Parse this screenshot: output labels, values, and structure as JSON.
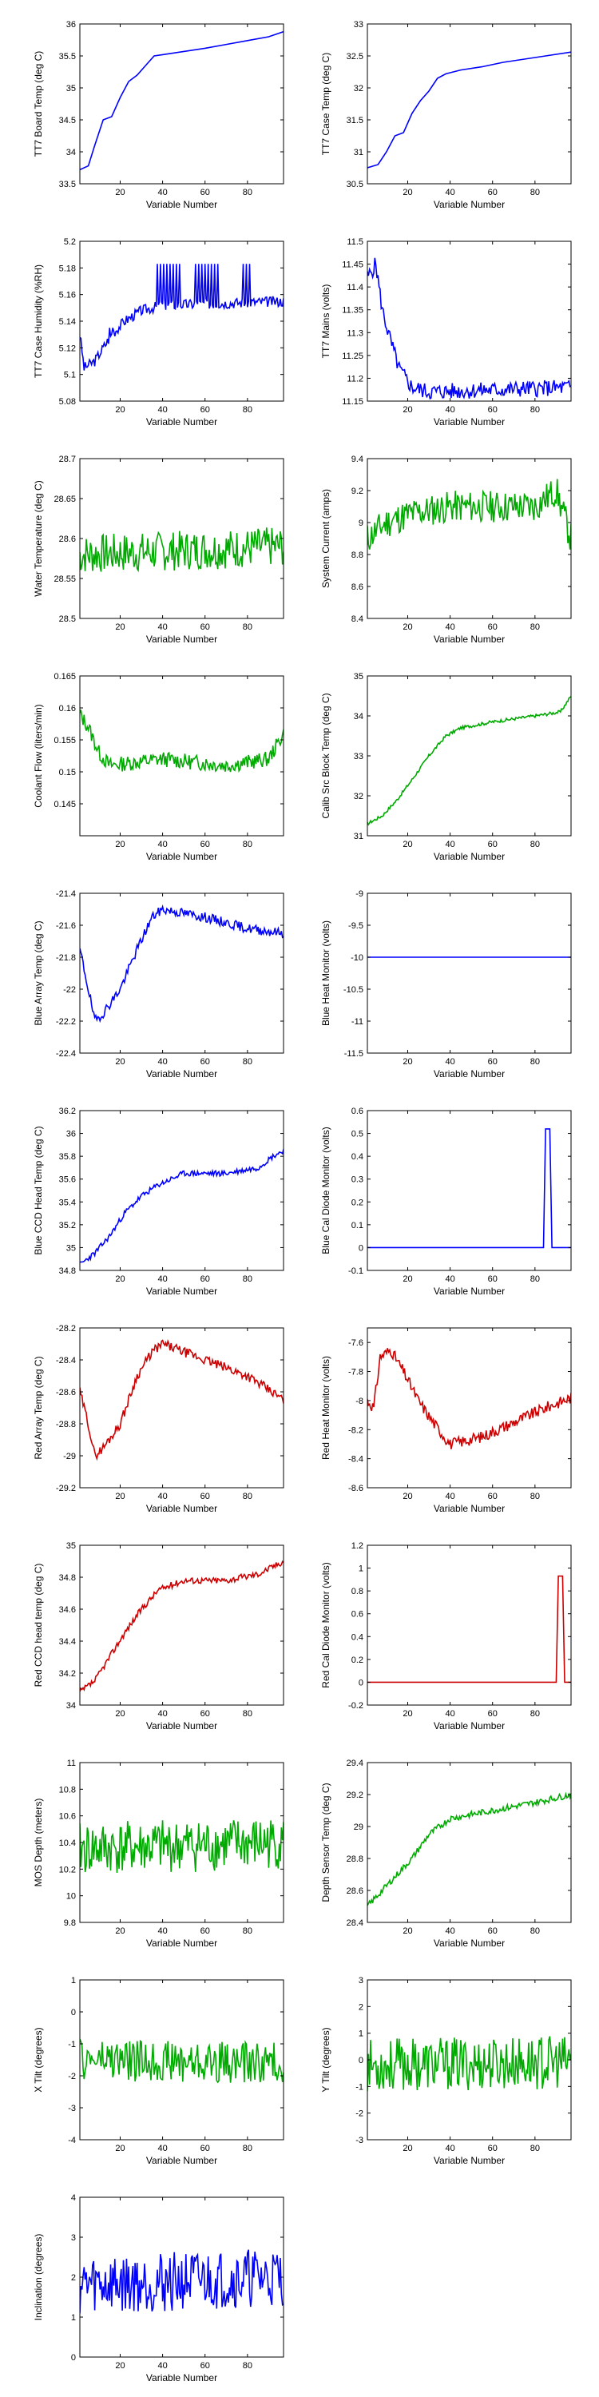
{
  "colors": {
    "blue": "#0000ff",
    "green": "#00aa00",
    "red": "#cc0000"
  },
  "chart_data": [
    {
      "type": "line",
      "xlabel": "Variable Number",
      "ylabel": "TT7 Board Temp (deg C)",
      "color": "blue",
      "xlim": [
        1,
        97
      ],
      "ylim": [
        33.5,
        36
      ],
      "xticks": [
        20,
        40,
        60,
        80
      ],
      "yticks": [
        33.5,
        34,
        34.5,
        35,
        35.5,
        36
      ],
      "kind": "smooth",
      "points": [
        [
          1,
          33.72
        ],
        [
          5,
          33.78
        ],
        [
          8,
          34.1
        ],
        [
          10,
          34.3
        ],
        [
          12,
          34.5
        ],
        [
          16,
          34.55
        ],
        [
          20,
          34.85
        ],
        [
          24,
          35.1
        ],
        [
          28,
          35.2
        ],
        [
          32,
          35.35
        ],
        [
          36,
          35.5
        ],
        [
          40,
          35.52
        ],
        [
          50,
          35.57
        ],
        [
          60,
          35.62
        ],
        [
          70,
          35.68
        ],
        [
          80,
          35.74
        ],
        [
          90,
          35.8
        ],
        [
          97,
          35.88
        ]
      ]
    },
    {
      "type": "line",
      "xlabel": "Variable Number",
      "ylabel": "TT7 Case Temp (deg C)",
      "color": "blue",
      "xlim": [
        1,
        97
      ],
      "ylim": [
        30.5,
        33
      ],
      "xticks": [
        20,
        40,
        60,
        80
      ],
      "yticks": [
        30.5,
        31,
        31.5,
        32,
        32.5,
        33
      ],
      "kind": "smooth",
      "points": [
        [
          1,
          30.75
        ],
        [
          6,
          30.8
        ],
        [
          10,
          31.0
        ],
        [
          14,
          31.25
        ],
        [
          18,
          31.3
        ],
        [
          22,
          31.6
        ],
        [
          26,
          31.8
        ],
        [
          30,
          31.95
        ],
        [
          34,
          32.15
        ],
        [
          38,
          32.22
        ],
        [
          45,
          32.28
        ],
        [
          55,
          32.33
        ],
        [
          65,
          32.4
        ],
        [
          75,
          32.45
        ],
        [
          85,
          32.5
        ],
        [
          97,
          32.56
        ]
      ]
    },
    {
      "type": "line",
      "xlabel": "Variable Number",
      "ylabel": "TT7 Case Humidity (%RH)",
      "color": "blue",
      "xlim": [
        1,
        97
      ],
      "ylim": [
        5.08,
        5.2
      ],
      "xticks": [
        20,
        40,
        60,
        80
      ],
      "yticks": [
        5.08,
        5.1,
        5.12,
        5.14,
        5.16,
        5.18,
        5.2
      ],
      "kind": "noise",
      "base": [
        [
          1,
          5.13
        ],
        [
          3,
          5.105
        ],
        [
          8,
          5.11
        ],
        [
          12,
          5.12
        ],
        [
          16,
          5.13
        ],
        [
          22,
          5.14
        ],
        [
          30,
          5.148
        ],
        [
          40,
          5.152
        ],
        [
          97,
          5.155
        ]
      ],
      "noise": 0.004,
      "seed": 3,
      "spikes": [
        [
          37,
          48,
          5.183
        ],
        [
          55,
          66,
          5.183
        ],
        [
          77,
          82,
          5.183
        ],
        [
          14,
          17,
          5.135
        ]
      ]
    },
    {
      "type": "line",
      "xlabel": "Variable Number",
      "ylabel": "TT7 Mains  (volts)",
      "color": "blue",
      "xlim": [
        1,
        97
      ],
      "ylim": [
        11.15,
        11.5
      ],
      "xticks": [
        20,
        40,
        60,
        80
      ],
      "yticks": [
        11.15,
        11.2,
        11.25,
        11.3,
        11.35,
        11.4,
        11.45,
        11.5
      ],
      "kind": "noise",
      "base": [
        [
          1,
          11.42
        ],
        [
          5,
          11.45
        ],
        [
          8,
          11.35
        ],
        [
          12,
          11.28
        ],
        [
          16,
          11.22
        ],
        [
          22,
          11.18
        ],
        [
          30,
          11.17
        ],
        [
          97,
          11.18
        ]
      ],
      "noise": 0.018,
      "seed": 5
    },
    {
      "type": "line",
      "xlabel": "Variable Number",
      "ylabel": "Water Temperature (deg C)",
      "color": "green",
      "xlim": [
        1,
        97
      ],
      "ylim": [
        28.5,
        28.7
      ],
      "xticks": [
        20,
        40,
        60,
        80
      ],
      "yticks": [
        28.5,
        28.55,
        28.6,
        28.65,
        28.7
      ],
      "kind": "noise",
      "base": [
        [
          1,
          28.58
        ],
        [
          97,
          28.59
        ]
      ],
      "noise": 0.025,
      "seed": 7
    },
    {
      "type": "line",
      "xlabel": "Variable Number",
      "ylabel": "System Current (amps)",
      "color": "green",
      "xlim": [
        1,
        97
      ],
      "ylim": [
        8.4,
        9.4
      ],
      "xticks": [
        20,
        40,
        60,
        80
      ],
      "yticks": [
        8.4,
        8.6,
        8.8,
        9,
        9.2,
        9.4
      ],
      "kind": "noise",
      "base": [
        [
          1,
          8.9
        ],
        [
          10,
          9.0
        ],
        [
          20,
          9.05
        ],
        [
          40,
          9.1
        ],
        [
          80,
          9.1
        ],
        [
          90,
          9.2
        ],
        [
          97,
          8.9
        ]
      ],
      "noise": 0.1,
      "seed": 11
    },
    {
      "type": "line",
      "xlabel": "Variable Number",
      "ylabel": "Coolant Flow (liters/min)",
      "color": "green",
      "xlim": [
        1,
        97
      ],
      "ylim": [
        0.14,
        0.165
      ],
      "xticks": [
        20,
        40,
        60,
        80
      ],
      "yticks": [
        0.145,
        0.15,
        0.155,
        0.16,
        0.165
      ],
      "kind": "noise",
      "base": [
        [
          1,
          0.159
        ],
        [
          5,
          0.157
        ],
        [
          10,
          0.153
        ],
        [
          15,
          0.151
        ],
        [
          40,
          0.152
        ],
        [
          70,
          0.151
        ],
        [
          90,
          0.152
        ],
        [
          97,
          0.156
        ]
      ],
      "noise": 0.0012,
      "seed": 13
    },
    {
      "type": "line",
      "xlabel": "Variable Number",
      "ylabel": "Calib Src Block Temp (deg C)",
      "color": "green",
      "xlim": [
        1,
        97
      ],
      "ylim": [
        31,
        35
      ],
      "xticks": [
        20,
        40,
        60,
        80
      ],
      "yticks": [
        31,
        32,
        33,
        34,
        35
      ],
      "kind": "noise",
      "base": [
        [
          1,
          31.3
        ],
        [
          8,
          31.5
        ],
        [
          15,
          31.9
        ],
        [
          22,
          32.4
        ],
        [
          30,
          33.0
        ],
        [
          38,
          33.5
        ],
        [
          45,
          33.7
        ],
        [
          60,
          33.85
        ],
        [
          80,
          34.0
        ],
        [
          92,
          34.1
        ],
        [
          97,
          34.5
        ]
      ],
      "noise": 0.04,
      "seed": 17
    },
    {
      "type": "line",
      "xlabel": "Variable Number",
      "ylabel": "Blue Array Temp (deg C)",
      "color": "blue",
      "xlim": [
        1,
        97
      ],
      "ylim": [
        -22.4,
        -21.4
      ],
      "xticks": [
        20,
        40,
        60,
        80
      ],
      "yticks": [
        -22.4,
        -22.2,
        -22,
        -21.8,
        -21.6,
        -21.4
      ],
      "kind": "noise",
      "base": [
        [
          1,
          -21.75
        ],
        [
          5,
          -22.0
        ],
        [
          8,
          -22.2
        ],
        [
          12,
          -22.15
        ],
        [
          20,
          -22.0
        ],
        [
          28,
          -21.75
        ],
        [
          35,
          -21.55
        ],
        [
          40,
          -21.5
        ],
        [
          60,
          -21.55
        ],
        [
          80,
          -21.62
        ],
        [
          97,
          -21.65
        ]
      ],
      "noise": 0.03,
      "seed": 19
    },
    {
      "type": "line",
      "xlabel": "Variable Number",
      "ylabel": "Blue Heat Monitor (volts)",
      "color": "blue",
      "xlim": [
        1,
        97
      ],
      "ylim": [
        -11.5,
        -9
      ],
      "xticks": [
        20,
        40,
        60,
        80
      ],
      "yticks": [
        -11.5,
        -11,
        -10.5,
        -10,
        -9.5,
        -9
      ],
      "kind": "flat",
      "value": -10
    },
    {
      "type": "line",
      "xlabel": "Variable Number",
      "ylabel": "Blue CCD Head Temp (deg C)",
      "color": "blue",
      "xlim": [
        1,
        97
      ],
      "ylim": [
        34.8,
        36.2
      ],
      "xticks": [
        20,
        40,
        60,
        80
      ],
      "yticks": [
        34.8,
        35,
        35.2,
        35.4,
        35.6,
        35.8,
        36,
        36.2
      ],
      "kind": "noise",
      "base": [
        [
          1,
          34.85
        ],
        [
          8,
          34.95
        ],
        [
          15,
          35.1
        ],
        [
          22,
          35.3
        ],
        [
          30,
          35.45
        ],
        [
          38,
          35.55
        ],
        [
          50,
          35.65
        ],
        [
          70,
          35.65
        ],
        [
          85,
          35.7
        ],
        [
          92,
          35.8
        ],
        [
          97,
          35.85
        ]
      ],
      "noise": 0.025,
      "seed": 23
    },
    {
      "type": "line",
      "xlabel": "Variable Number",
      "ylabel": "Blue Cal Diode Monitor (volts)",
      "color": "blue",
      "xlim": [
        1,
        97
      ],
      "ylim": [
        -0.1,
        0.6
      ],
      "xticks": [
        20,
        40,
        60,
        80
      ],
      "yticks": [
        -0.1,
        0,
        0.1,
        0.2,
        0.3,
        0.4,
        0.5,
        0.6
      ],
      "kind": "pulse",
      "value": 0,
      "pulse": [
        84,
        88,
        0.52
      ]
    },
    {
      "type": "line",
      "xlabel": "Variable Number",
      "ylabel": "Red Array Temp (deg C)",
      "color": "red",
      "xlim": [
        1,
        97
      ],
      "ylim": [
        -29.2,
        -28.2
      ],
      "xticks": [
        20,
        40,
        60,
        80
      ],
      "yticks": [
        -29.2,
        -29,
        -28.8,
        -28.6,
        -28.4,
        -28.2
      ],
      "kind": "noise",
      "base": [
        [
          1,
          -28.6
        ],
        [
          5,
          -28.8
        ],
        [
          8,
          -29.0
        ],
        [
          12,
          -28.95
        ],
        [
          20,
          -28.8
        ],
        [
          28,
          -28.5
        ],
        [
          35,
          -28.35
        ],
        [
          40,
          -28.3
        ],
        [
          60,
          -28.4
        ],
        [
          80,
          -28.5
        ],
        [
          97,
          -28.65
        ]
      ],
      "noise": 0.03,
      "seed": 29
    },
    {
      "type": "line",
      "xlabel": "Variable Number",
      "ylabel": "Red Heat Monitor (volts)",
      "color": "red",
      "xlim": [
        1,
        97
      ],
      "ylim": [
        -8.6,
        -7.5
      ],
      "xticks": [
        20,
        40,
        60,
        80
      ],
      "yticks": [
        -8.6,
        -8.4,
        -8.2,
        -8,
        -7.8,
        -7.6
      ],
      "kind": "noise",
      "base": [
        [
          1,
          -8.0
        ],
        [
          4,
          -8.05
        ],
        [
          7,
          -7.7
        ],
        [
          12,
          -7.65
        ],
        [
          18,
          -7.8
        ],
        [
          25,
          -8.0
        ],
        [
          32,
          -8.15
        ],
        [
          40,
          -8.3
        ],
        [
          55,
          -8.25
        ],
        [
          70,
          -8.15
        ],
        [
          85,
          -8.05
        ],
        [
          97,
          -7.98
        ]
      ],
      "noise": 0.04,
      "seed": 31
    },
    {
      "type": "line",
      "xlabel": "Variable Number",
      "ylabel": "Red CCD head temp (deg C)",
      "color": "red",
      "xlim": [
        1,
        97
      ],
      "ylim": [
        34,
        35
      ],
      "xticks": [
        20,
        40,
        60,
        80
      ],
      "yticks": [
        34,
        34.2,
        34.4,
        34.6,
        34.8,
        35
      ],
      "kind": "noise",
      "base": [
        [
          1,
          34.08
        ],
        [
          8,
          34.15
        ],
        [
          15,
          34.3
        ],
        [
          22,
          34.45
        ],
        [
          30,
          34.6
        ],
        [
          38,
          34.72
        ],
        [
          50,
          34.78
        ],
        [
          70,
          34.78
        ],
        [
          85,
          34.82
        ],
        [
          97,
          34.9
        ]
      ],
      "noise": 0.02,
      "seed": 37
    },
    {
      "type": "line",
      "xlabel": "Variable Number",
      "ylabel": "Red Cal Diode Monitor (volts)",
      "color": "red",
      "xlim": [
        1,
        97
      ],
      "ylim": [
        -0.2,
        1.2
      ],
      "xticks": [
        20,
        40,
        60,
        80
      ],
      "yticks": [
        -0.2,
        0,
        0.2,
        0.4,
        0.6,
        0.8,
        1,
        1.2
      ],
      "kind": "pulse",
      "value": 0,
      "pulse": [
        90,
        94,
        0.93
      ]
    },
    {
      "type": "line",
      "xlabel": "Variable Number",
      "ylabel": "MOS Depth  (meters)",
      "color": "green",
      "xlim": [
        1,
        97
      ],
      "ylim": [
        9.8,
        11
      ],
      "xticks": [
        20,
        40,
        60,
        80
      ],
      "yticks": [
        9.8,
        10,
        10.2,
        10.4,
        10.6,
        10.8,
        11
      ],
      "kind": "noise",
      "base": [
        [
          1,
          10.35
        ],
        [
          97,
          10.4
        ]
      ],
      "noise": 0.2,
      "seed": 41
    },
    {
      "type": "line",
      "xlabel": "Variable Number",
      "ylabel": "Depth Sensor Temp (deg C)",
      "color": "green",
      "xlim": [
        1,
        97
      ],
      "ylim": [
        28.4,
        29.4
      ],
      "xticks": [
        20,
        40,
        60,
        80
      ],
      "yticks": [
        28.4,
        28.6,
        28.8,
        29,
        29.2,
        29.4
      ],
      "kind": "noise",
      "base": [
        [
          1,
          28.5
        ],
        [
          8,
          28.6
        ],
        [
          15,
          28.7
        ],
        [
          22,
          28.8
        ],
        [
          30,
          28.95
        ],
        [
          40,
          29.05
        ],
        [
          60,
          29.1
        ],
        [
          80,
          29.15
        ],
        [
          97,
          29.2
        ]
      ],
      "noise": 0.02,
      "seed": 43
    },
    {
      "type": "line",
      "xlabel": "Variable Number",
      "ylabel": "X Tilt  (degrees)",
      "color": "green",
      "xlim": [
        1,
        97
      ],
      "ylim": [
        -4,
        1
      ],
      "xticks": [
        20,
        40,
        60,
        80
      ],
      "yticks": [
        -4,
        -3,
        -2,
        -1,
        0,
        1
      ],
      "kind": "noise",
      "base": [
        [
          1,
          -1.5
        ],
        [
          97,
          -1.6
        ]
      ],
      "noise": 0.65,
      "seed": 47
    },
    {
      "type": "line",
      "xlabel": "Variable Number",
      "ylabel": "Y Tilt  (degrees)",
      "color": "green",
      "xlim": [
        1,
        97
      ],
      "ylim": [
        -3,
        3
      ],
      "xticks": [
        20,
        40,
        60,
        80
      ],
      "yticks": [
        -3,
        -2,
        -1,
        0,
        1,
        2,
        3
      ],
      "kind": "noise",
      "base": [
        [
          1,
          -0.2
        ],
        [
          97,
          -0.1
        ]
      ],
      "noise": 1.0,
      "seed": 53
    },
    {
      "type": "line",
      "xlabel": "Variable Number",
      "ylabel": "Inclination  (degrees)",
      "color": "blue",
      "xlim": [
        1,
        97
      ],
      "ylim": [
        0,
        4
      ],
      "xticks": [
        20,
        40,
        60,
        80
      ],
      "yticks": [
        0,
        1,
        2,
        3,
        4
      ],
      "kind": "noise",
      "base": [
        [
          1,
          1.8
        ],
        [
          97,
          2.0
        ]
      ],
      "noise": 0.75,
      "seed": 59
    }
  ]
}
